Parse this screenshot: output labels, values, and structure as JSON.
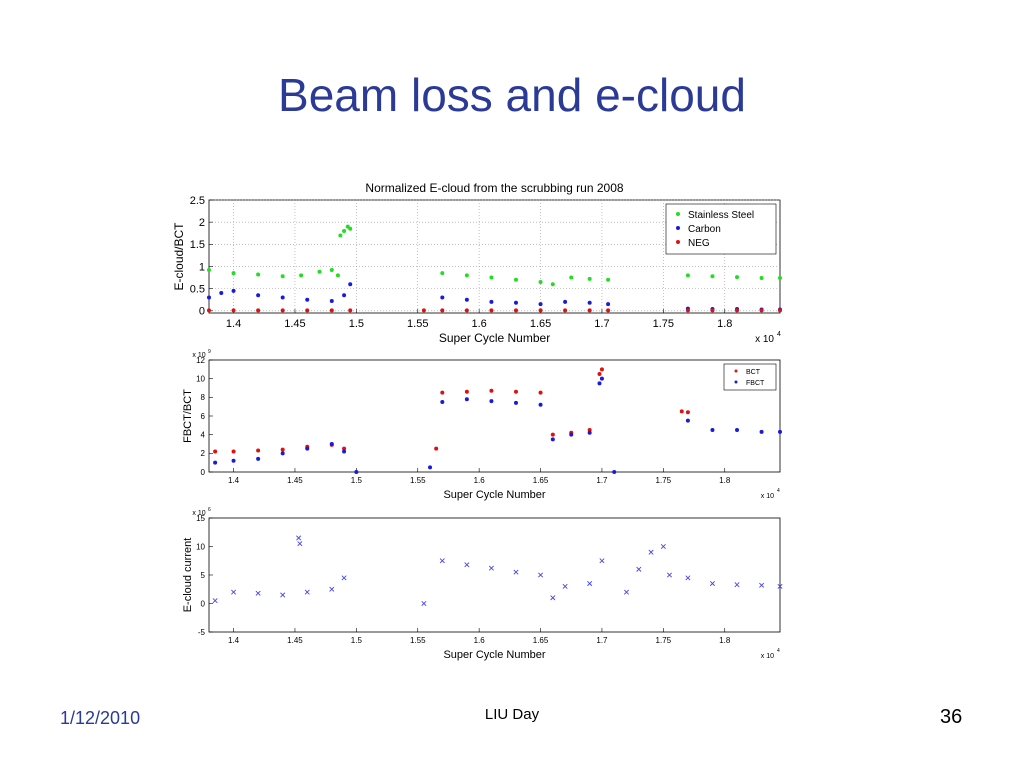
{
  "slide": {
    "title": "Beam loss and e-cloud",
    "footer_date": "1/12/2010",
    "footer_center": "LIU Day",
    "page_number": "36"
  },
  "colors": {
    "title": "#2b3a96",
    "green": "#22dd22",
    "blue": "#1a1adc",
    "red": "#e01010",
    "xblue": "#4444ee"
  },
  "chart_data": [
    {
      "type": "scatter",
      "title": "Normalized E-cloud from the scrubbing run 2008",
      "xlabel": "Super Cycle Number",
      "ylabel": "E-cloud/BCT",
      "xlim": [
        13800,
        18450
      ],
      "ylim": [
        -0.05,
        2.5
      ],
      "x_exponent": "x 10",
      "x_exponent_power": "4",
      "x_tick_labels": [
        "1.4",
        "1.45",
        "1.5",
        "1.55",
        "1.6",
        "1.65",
        "1.7",
        "1.75",
        "1.8"
      ],
      "y_tick_labels": [
        "0",
        "0.5",
        "1",
        "1.5",
        "2",
        "2.5"
      ],
      "grid": true,
      "legend_position": "top-right",
      "series": [
        {
          "name": "Stainless Steel",
          "marker": "dot",
          "color": "#22dd22",
          "points": [
            [
              13800,
              0.92
            ],
            [
              14000,
              0.85
            ],
            [
              14200,
              0.82
            ],
            [
              14400,
              0.78
            ],
            [
              14550,
              0.8
            ],
            [
              14700,
              0.88
            ],
            [
              14800,
              0.92
            ],
            [
              14850,
              0.8
            ],
            [
              14870,
              1.7
            ],
            [
              14900,
              1.8
            ],
            [
              14930,
              1.9
            ],
            [
              14950,
              1.85
            ],
            [
              15700,
              0.85
            ],
            [
              15900,
              0.8
            ],
            [
              16100,
              0.75
            ],
            [
              16300,
              0.7
            ],
            [
              16500,
              0.65
            ],
            [
              16600,
              0.6
            ],
            [
              16750,
              0.75
            ],
            [
              16900,
              0.72
            ],
            [
              17050,
              0.7
            ],
            [
              17700,
              0.8
            ],
            [
              17900,
              0.78
            ],
            [
              18100,
              0.76
            ],
            [
              18300,
              0.74
            ],
            [
              18450,
              0.74
            ]
          ]
        },
        {
          "name": "Carbon",
          "marker": "dot",
          "color": "#1a1adc",
          "points": [
            [
              13800,
              0.3
            ],
            [
              13900,
              0.4
            ],
            [
              14000,
              0.45
            ],
            [
              14200,
              0.35
            ],
            [
              14400,
              0.3
            ],
            [
              14600,
              0.25
            ],
            [
              14800,
              0.22
            ],
            [
              14900,
              0.35
            ],
            [
              14950,
              0.6
            ],
            [
              15700,
              0.3
            ],
            [
              15900,
              0.25
            ],
            [
              16100,
              0.2
            ],
            [
              16300,
              0.18
            ],
            [
              16500,
              0.15
            ],
            [
              16700,
              0.2
            ],
            [
              16900,
              0.18
            ],
            [
              17050,
              0.15
            ],
            [
              17700,
              0.05
            ],
            [
              17900,
              0.04
            ],
            [
              18100,
              0.04
            ],
            [
              18300,
              0.03
            ],
            [
              18450,
              0.03
            ]
          ]
        },
        {
          "name": "NEG",
          "marker": "dot",
          "color": "#e01010",
          "points": [
            [
              13800,
              0.01
            ],
            [
              14000,
              0.01
            ],
            [
              14200,
              0.01
            ],
            [
              14400,
              0.01
            ],
            [
              14600,
              0.01
            ],
            [
              14800,
              0.01
            ],
            [
              14950,
              0.01
            ],
            [
              15550,
              0.01
            ],
            [
              15700,
              0.01
            ],
            [
              15900,
              0.01
            ],
            [
              16100,
              0.01
            ],
            [
              16300,
              0.01
            ],
            [
              16500,
              0.01
            ],
            [
              16700,
              0.01
            ],
            [
              16900,
              0.01
            ],
            [
              17050,
              0.01
            ],
            [
              17700,
              0.01
            ],
            [
              17900,
              0.01
            ],
            [
              18100,
              0.01
            ],
            [
              18300,
              0.01
            ],
            [
              18450,
              0.01
            ]
          ]
        }
      ]
    },
    {
      "type": "scatter",
      "xlabel": "Super Cycle Number",
      "ylabel": "FBCT/BCT",
      "xlim": [
        13800,
        18450
      ],
      "ylim": [
        0,
        12
      ],
      "y_exponent": "x 10",
      "y_exponent_power": "9",
      "x_exponent": "x 10",
      "x_exponent_power": "4",
      "x_tick_labels": [
        "1.4",
        "1.45",
        "1.5",
        "1.55",
        "1.6",
        "1.65",
        "1.7",
        "1.75",
        "1.8"
      ],
      "y_tick_labels": [
        "0",
        "2",
        "4",
        "6",
        "8",
        "10",
        "12"
      ],
      "grid": false,
      "legend_position": "top-right",
      "series": [
        {
          "name": "BCT",
          "marker": "dot",
          "color": "#e01010",
          "points": [
            [
              13850,
              2.2
            ],
            [
              14000,
              2.2
            ],
            [
              14200,
              2.3
            ],
            [
              14400,
              2.4
            ],
            [
              14600,
              2.7
            ],
            [
              14800,
              2.9
            ],
            [
              14900,
              2.5
            ],
            [
              15650,
              2.5
            ],
            [
              15700,
              8.5
            ],
            [
              15900,
              8.6
            ],
            [
              16100,
              8.7
            ],
            [
              16300,
              8.6
            ],
            [
              16500,
              8.5
            ],
            [
              16600,
              4.0
            ],
            [
              16750,
              4.2
            ],
            [
              16900,
              4.5
            ],
            [
              16980,
              10.5
            ],
            [
              17000,
              11.0
            ],
            [
              17650,
              6.5
            ],
            [
              17700,
              6.4
            ]
          ]
        },
        {
          "name": "FBCT",
          "marker": "dot",
          "color": "#1a1adc",
          "points": [
            [
              13850,
              1.0
            ],
            [
              14000,
              1.2
            ],
            [
              14200,
              1.4
            ],
            [
              14400,
              2.0
            ],
            [
              14600,
              2.5
            ],
            [
              14800,
              3.0
            ],
            [
              14900,
              2.2
            ],
            [
              15000,
              0.0
            ],
            [
              15600,
              0.5
            ],
            [
              15700,
              7.5
            ],
            [
              15900,
              7.8
            ],
            [
              16100,
              7.6
            ],
            [
              16300,
              7.4
            ],
            [
              16500,
              7.2
            ],
            [
              16600,
              3.5
            ],
            [
              16750,
              4.0
            ],
            [
              16900,
              4.2
            ],
            [
              16980,
              9.5
            ],
            [
              17000,
              10.0
            ],
            [
              17100,
              0.0
            ],
            [
              17700,
              5.5
            ],
            [
              17900,
              4.5
            ],
            [
              18100,
              4.5
            ],
            [
              18300,
              4.3
            ],
            [
              18450,
              4.3
            ]
          ]
        }
      ]
    },
    {
      "type": "scatter",
      "xlabel": "Super Cycle Number",
      "ylabel": "E-cloud current",
      "xlim": [
        13800,
        18450
      ],
      "ylim": [
        -5,
        15
      ],
      "y_exponent": "x 10",
      "y_exponent_power": "6",
      "x_exponent": "x 10",
      "x_exponent_power": "4",
      "x_tick_labels": [
        "1.4",
        "1.45",
        "1.5",
        "1.55",
        "1.6",
        "1.65",
        "1.7",
        "1.75",
        "1.8"
      ],
      "y_tick_labels": [
        "-5",
        "0",
        "5",
        "10",
        "15"
      ],
      "grid": false,
      "series": [
        {
          "marker": "x",
          "color": "#4444ee",
          "points": [
            [
              13850,
              0.5
            ],
            [
              14000,
              2.0
            ],
            [
              14200,
              1.8
            ],
            [
              14400,
              1.5
            ],
            [
              14530,
              11.5
            ],
            [
              14540,
              10.5
            ],
            [
              14600,
              2.0
            ],
            [
              14800,
              2.5
            ],
            [
              14900,
              4.5
            ],
            [
              15550,
              0.0
            ],
            [
              15700,
              7.5
            ],
            [
              15900,
              6.8
            ],
            [
              16100,
              6.2
            ],
            [
              16300,
              5.5
            ],
            [
              16500,
              5.0
            ],
            [
              16600,
              1.0
            ],
            [
              16700,
              3.0
            ],
            [
              16900,
              3.5
            ],
            [
              17000,
              7.5
            ],
            [
              17200,
              2.0
            ],
            [
              17300,
              6.0
            ],
            [
              17400,
              9.0
            ],
            [
              17500,
              10.0
            ],
            [
              17550,
              5.0
            ],
            [
              17700,
              4.5
            ],
            [
              17900,
              3.5
            ],
            [
              18100,
              3.3
            ],
            [
              18300,
              3.2
            ],
            [
              18450,
              3.0
            ]
          ]
        }
      ]
    }
  ]
}
